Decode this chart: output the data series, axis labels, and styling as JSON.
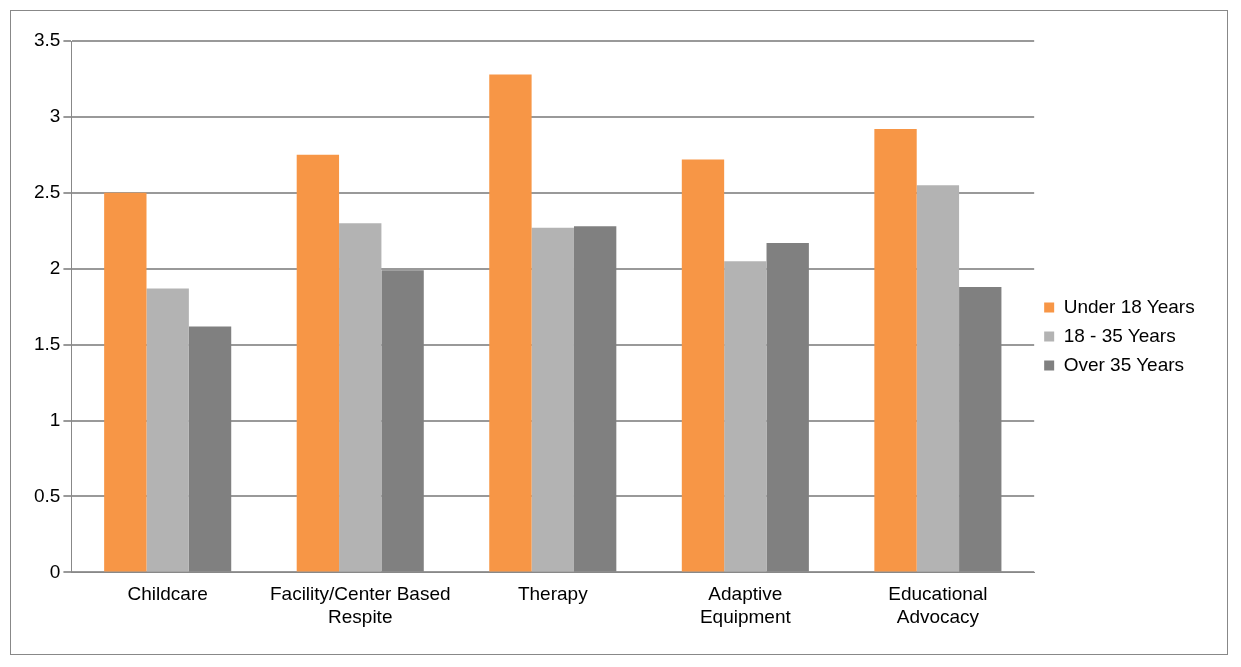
{
  "chart_data": {
    "type": "bar",
    "categories": [
      "Childcare",
      "Facility/Center Based Respite",
      "Therapy",
      "Adaptive Equipment",
      "Educational Advocacy"
    ],
    "series": [
      {
        "name": "Under 18 Years",
        "color": "#f79646",
        "values": [
          2.5,
          2.75,
          3.28,
          2.72,
          2.92
        ]
      },
      {
        "name": "18 - 35 Years",
        "color": "#b3b3b3",
        "values": [
          1.87,
          2.3,
          2.27,
          2.05,
          2.55
        ]
      },
      {
        "name": "Over 35 Years",
        "color": "#808080",
        "values": [
          1.62,
          1.99,
          2.28,
          2.17,
          1.88
        ]
      }
    ],
    "ylim": [
      0,
      3.5
    ],
    "yticks": [
      0,
      0.5,
      1,
      1.5,
      2,
      2.5,
      3,
      3.5
    ],
    "grid": "y",
    "legend": "right"
  }
}
